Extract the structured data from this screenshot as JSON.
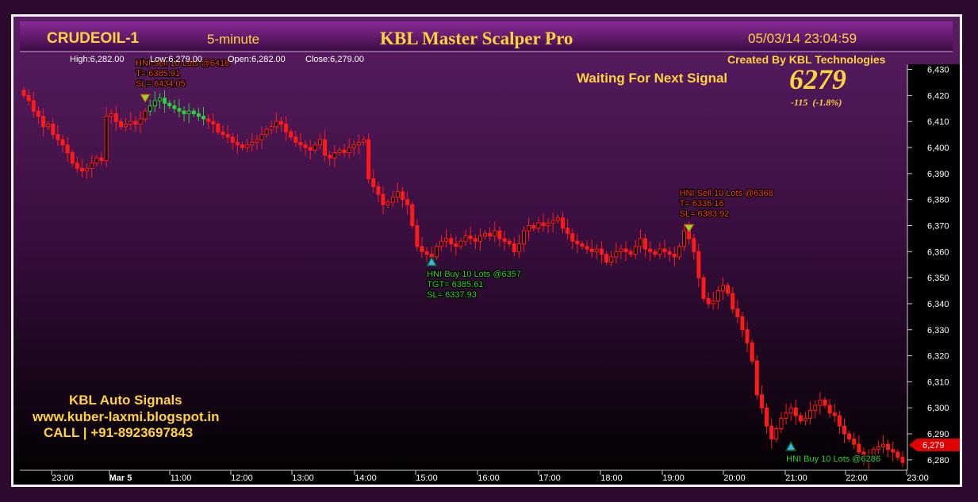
{
  "header": {
    "symbol": "CRUDEOIL-1",
    "timeframe": "5-minute",
    "app_title": "KBL Master Scalper Pro",
    "datetime": "05/03/14 23:04:59",
    "credit": "Created By KBL Technologies",
    "ohlc": {
      "high": "High:6,282.00",
      "low": "Low:6,279.00",
      "open": "Open:6,282.00",
      "close": "Close:6,279.00"
    }
  },
  "status": {
    "waiting_text": "Waiting For Next Signal",
    "last_price": "6279",
    "change": "-115  (-1.8%)",
    "price_tag": "6,279"
  },
  "promo": {
    "line1": "KBL Auto Signals",
    "line2": "www.kuber-laxmi.blogspot.in",
    "line3": "CALL | +91-8923697843"
  },
  "colors": {
    "bearish": "#ff1a1a",
    "bullish_signal": "#2ecc40",
    "accent_gold": "#ffd23f",
    "sell_text": "#ff3b1f",
    "buy_text": "#30d030"
  },
  "chart_data": {
    "type": "candlestick",
    "title": "KBL Master Scalper Pro",
    "xlabel": "",
    "ylabel": "",
    "ylim": [
      6276,
      6432
    ],
    "y_ticks": [
      "6,430",
      "6,420",
      "6,410",
      "6,400",
      "6,390",
      "6,380",
      "6,370",
      "6,360",
      "6,350",
      "6,340",
      "6,330",
      "6,320",
      "6,310",
      "6,300",
      "6,290",
      "6,280"
    ],
    "x_ticks": [
      "23:00",
      "Mar 5",
      "11:00",
      "12:00",
      "13:00",
      "14:00",
      "15:00",
      "16:00",
      "17:00",
      "18:00",
      "19:00",
      "20:00",
      "21:00",
      "22:00",
      "23:00"
    ],
    "grid": false,
    "closes": [
      6420,
      6418,
      6414,
      6412,
      6408,
      6409,
      6405,
      6403,
      6401,
      6398,
      6394,
      6392,
      6391,
      6392,
      6394,
      6396,
      6395,
      6412,
      6413,
      6410,
      6408,
      6409,
      6410,
      6409,
      6411,
      6414,
      6416,
      6418,
      6419,
      6417,
      6416,
      6415,
      6414,
      6413,
      6414,
      6413,
      6412,
      6411,
      6410,
      6409,
      6406,
      6405,
      6404,
      6402,
      6401,
      6400,
      6401,
      6402,
      6403,
      6405,
      6407,
      6408,
      6410,
      6409,
      6406,
      6404,
      6402,
      6401,
      6400,
      6399,
      6401,
      6403,
      6397,
      6396,
      6398,
      6399,
      6398,
      6400,
      6401,
      6402,
      6403,
      6388,
      6385,
      6382,
      6378,
      6379,
      6381,
      6383,
      6380,
      6378,
      6370,
      6362,
      6360,
      6359,
      6358,
      6362,
      6364,
      6365,
      6363,
      6362,
      6364,
      6366,
      6365,
      6364,
      6366,
      6367,
      6366,
      6368,
      6365,
      6364,
      6363,
      6360,
      6363,
      6368,
      6370,
      6369,
      6371,
      6370,
      6371,
      6372,
      6373,
      6369,
      6367,
      6364,
      6363,
      6362,
      6361,
      6360,
      6361,
      6359,
      6356,
      6358,
      6360,
      6361,
      6360,
      6359,
      6362,
      6365,
      6361,
      6360,
      6359,
      6361,
      6360,
      6359,
      6358,
      6362,
      6368,
      6365,
      6360,
      6350,
      6342,
      6340,
      6341,
      6345,
      6347,
      6344,
      6338,
      6335,
      6330,
      6325,
      6318,
      6305,
      6300,
      6293,
      6288,
      6292,
      6296,
      6298,
      6300,
      6297,
      6295,
      6296,
      6299,
      6301,
      6303,
      6301,
      6298,
      6297,
      6293,
      6290,
      6288,
      6286,
      6283,
      6281,
      6280,
      6284,
      6285,
      6286,
      6284,
      6283,
      6281,
      6279
    ],
    "signals": [
      {
        "side": "sell",
        "label": "HNI Sell 10 Lots @6418",
        "target": "T= 6385.91",
        "stop": "SL= 6434.05",
        "price": 6418,
        "bar": 25
      },
      {
        "side": "buy",
        "label": "HNI Buy 10 Lots @6357",
        "target": "TGT= 6385.61",
        "stop": "SL= 6337.93",
        "price": 6357,
        "bar": 84
      },
      {
        "side": "sell",
        "label": "HNI Sell 10 Lots @6368",
        "target": "T= 6336.16",
        "stop": "SL= 6383.92",
        "price": 6368,
        "bar": 137
      },
      {
        "side": "buy",
        "label": "HNI Buy 10 Lots @6286",
        "target": "",
        "stop": "",
        "price": 6286,
        "bar": 158
      }
    ]
  }
}
